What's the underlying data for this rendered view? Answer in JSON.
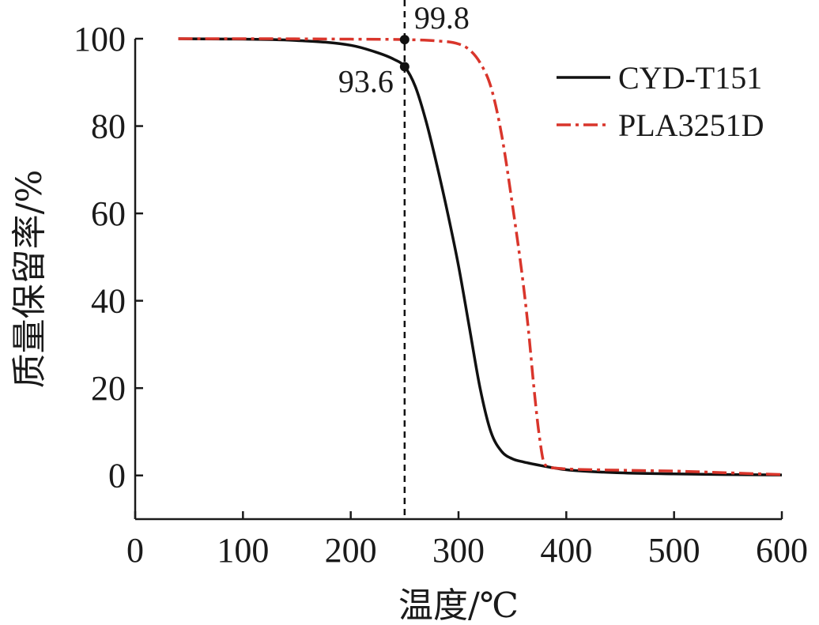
{
  "chart_data": {
    "type": "line",
    "xlabel": "温度/℃",
    "ylabel": "质量保留率/%",
    "xlim": [
      0,
      600
    ],
    "ylim": [
      -10,
      100
    ],
    "x_ticks": [
      0,
      100,
      200,
      300,
      400,
      500,
      600
    ],
    "x_tick_labels": [
      "0",
      "100",
      "200",
      "300",
      "400",
      "500",
      "600"
    ],
    "y_ticks": [
      0,
      20,
      40,
      60,
      80,
      100
    ],
    "y_tick_labels": [
      "0",
      "20",
      "40",
      "60",
      "80",
      "100"
    ],
    "grid": false,
    "legend_position": "top-right",
    "series": [
      {
        "name": "CYD-T151",
        "color": "#111111",
        "style": "solid",
        "x": [
          40,
          100,
          150,
          200,
          220,
          240,
          250,
          260,
          270,
          280,
          290,
          300,
          310,
          320,
          330,
          340,
          350,
          360,
          380,
          400,
          450,
          500,
          550,
          600
        ],
        "y": [
          100,
          99.9,
          99.6,
          98.5,
          97.2,
          95.3,
          93.6,
          89,
          81,
          71,
          60,
          48,
          34,
          20,
          10,
          5.5,
          3.8,
          3.1,
          2.1,
          1.3,
          0.6,
          0.35,
          0.2,
          0.1
        ]
      },
      {
        "name": "PLA3251D",
        "color": "#d9352b",
        "style": "dashdot",
        "x": [
          40,
          100,
          200,
          250,
          280,
          300,
          310,
          320,
          330,
          340,
          350,
          360,
          365,
          370,
          375,
          380,
          390,
          400,
          450,
          500,
          550,
          600
        ],
        "y": [
          100,
          100,
          99.9,
          99.8,
          99.5,
          98.8,
          97.5,
          94.5,
          89,
          78,
          62,
          44,
          33,
          20,
          9,
          2.5,
          1.7,
          1.5,
          1.2,
          1.0,
          0.6,
          0.2
        ]
      }
    ],
    "reference_line": {
      "x": 250,
      "style": "dashed",
      "color": "#111111"
    },
    "annotations": [
      {
        "label": "99.8",
        "x": 250,
        "y": 99.8
      },
      {
        "label": "93.6",
        "x": 250,
        "y": 93.6
      }
    ]
  }
}
